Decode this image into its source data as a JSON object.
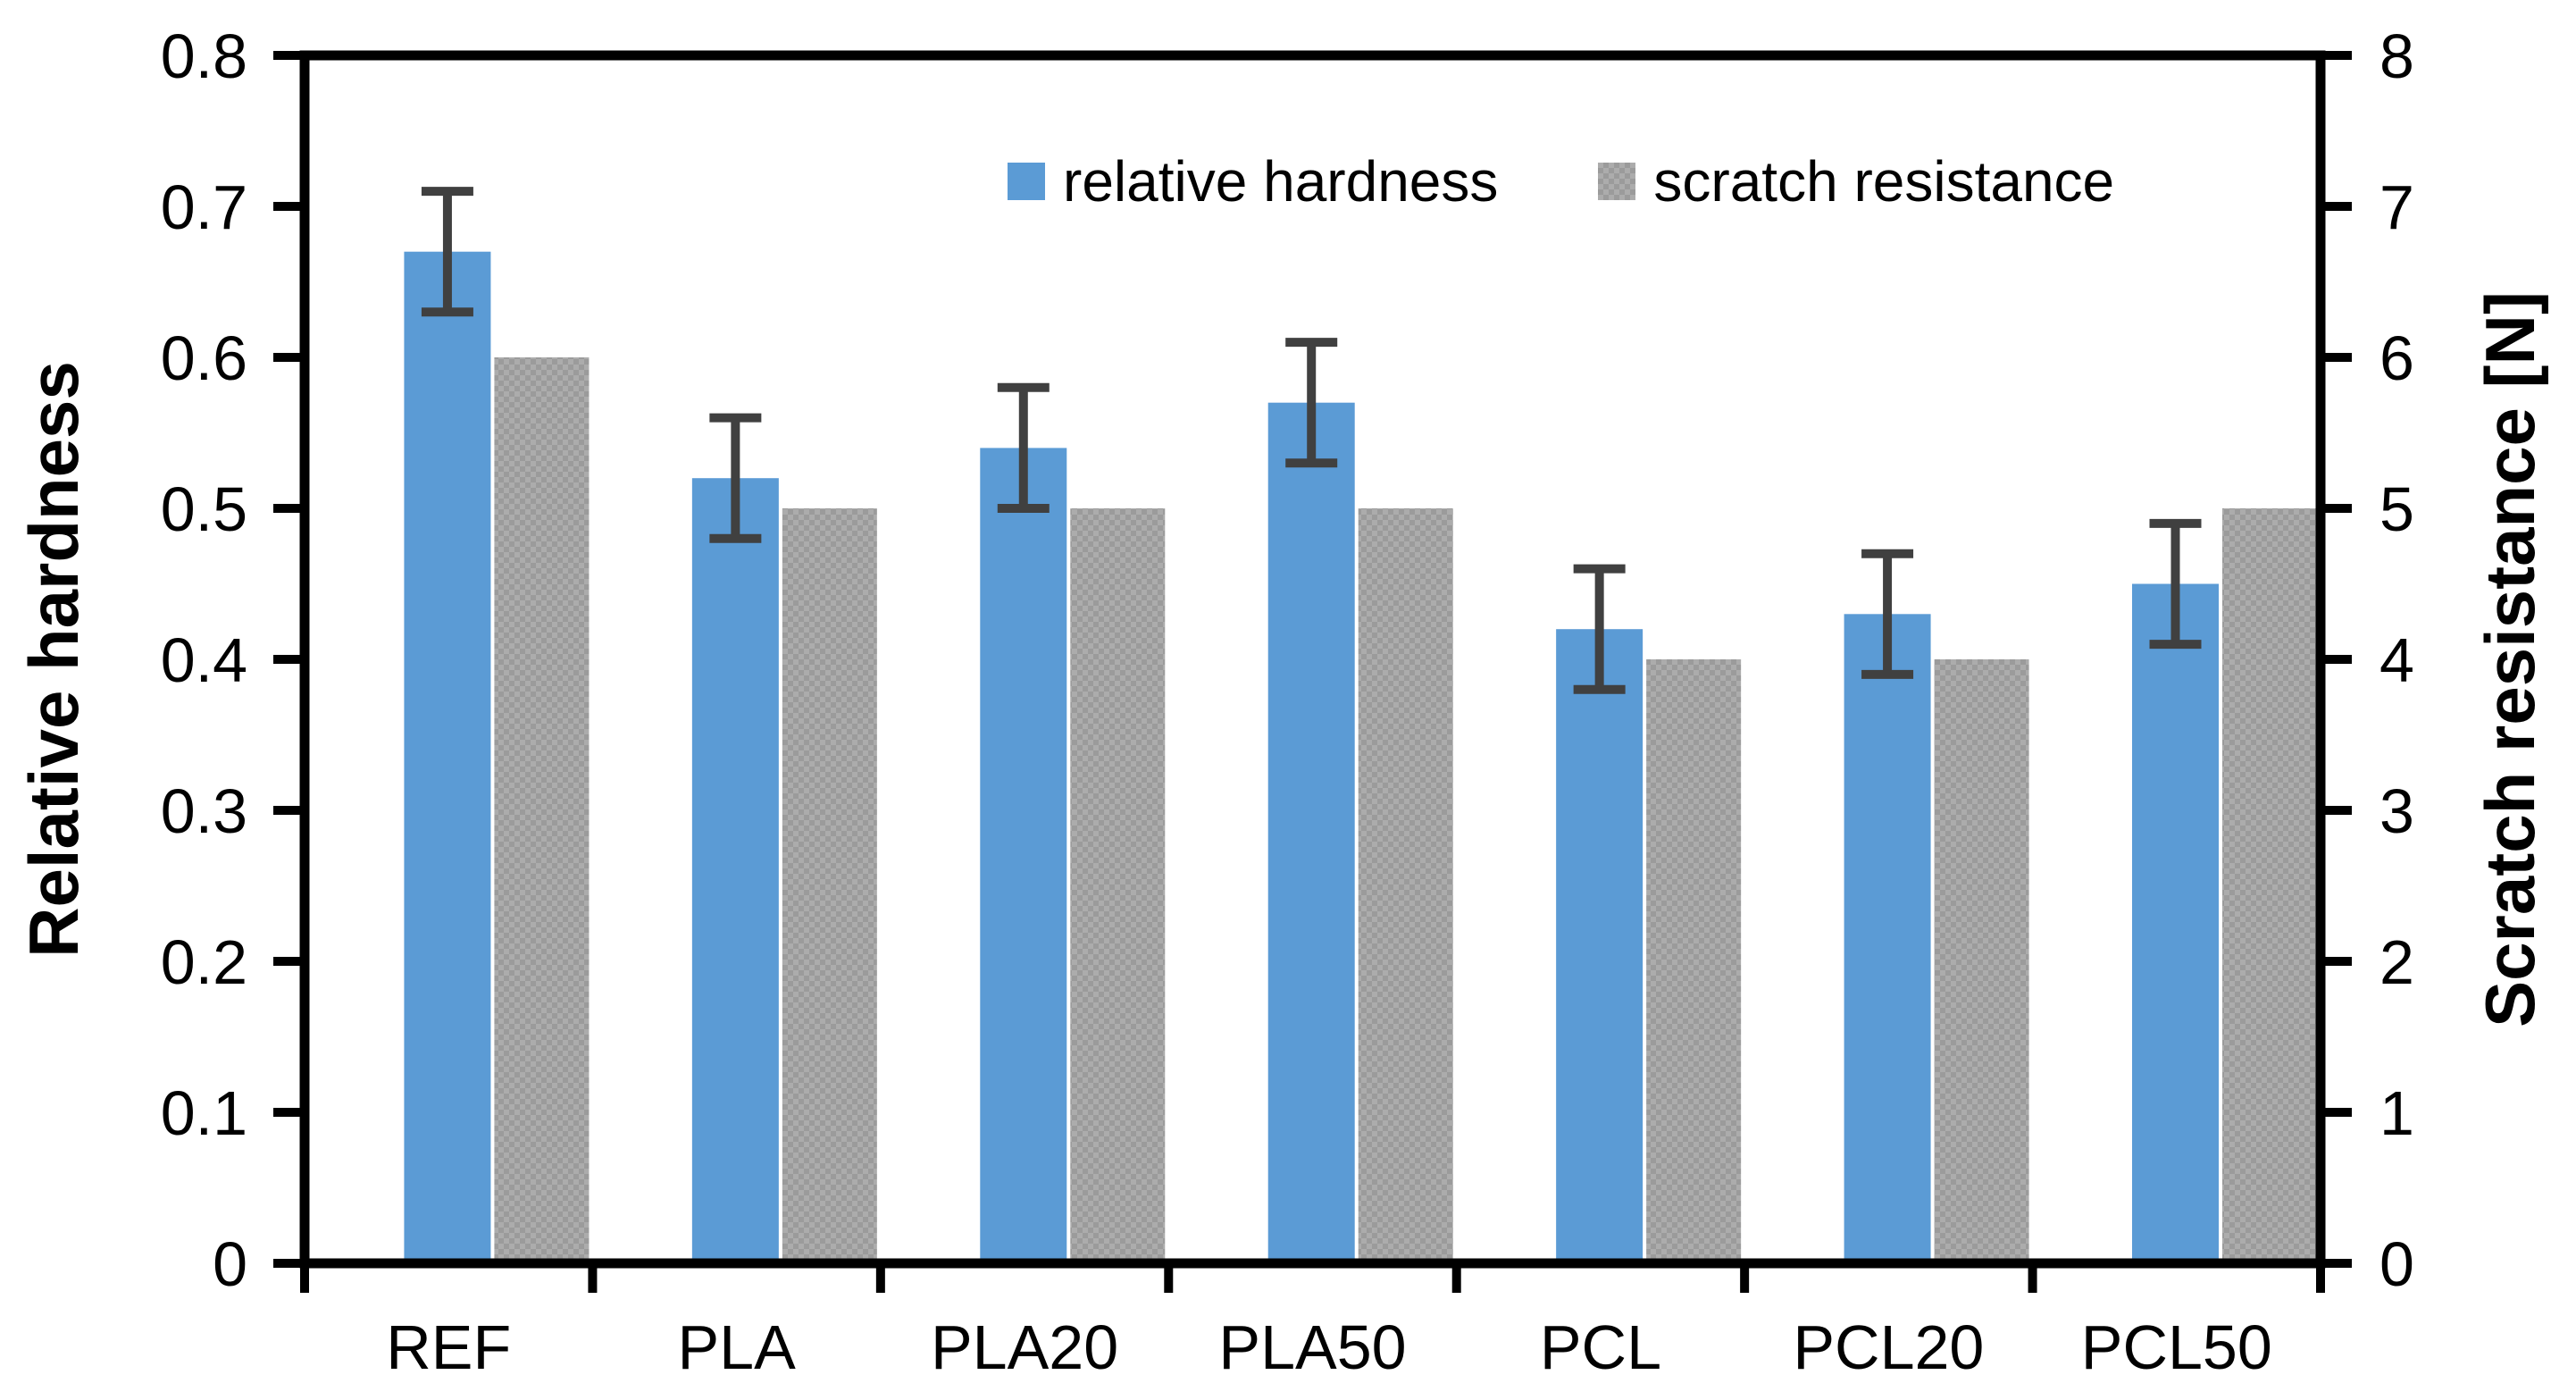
{
  "chart_data": {
    "type": "bar",
    "title": "",
    "categories": [
      "REF",
      "PLA",
      "PLA20",
      "PLA50",
      "PCL",
      "PCL20",
      "PCL50"
    ],
    "series": [
      {
        "name": "relative hardness",
        "axis": "left",
        "color": "#5B9BD5",
        "pattern": "solid",
        "values": [
          0.67,
          0.52,
          0.54,
          0.57,
          0.42,
          0.43,
          0.45
        ],
        "error_bars": [
          0.04,
          0.04,
          0.04,
          0.04,
          0.04,
          0.04,
          0.04
        ]
      },
      {
        "name": "scratch resistance",
        "axis": "right",
        "color": "#ACACAC",
        "pattern": "checker-dots",
        "pattern_dot_color": "#9B9B9B",
        "values": [
          6,
          5,
          5,
          5,
          4,
          4,
          5
        ]
      }
    ],
    "axes": {
      "left": {
        "label": "Relative hardness",
        "min": 0,
        "max": 0.8,
        "step": 0.1,
        "tick_labels": [
          "0",
          "0.1",
          "0.2",
          "0.3",
          "0.4",
          "0.5",
          "0.6",
          "0.7",
          "0.8"
        ]
      },
      "right": {
        "label": "Scratch resistance [N]",
        "min": 0,
        "max": 8,
        "step": 1,
        "tick_labels": [
          "0",
          "1",
          "2",
          "3",
          "4",
          "5",
          "6",
          "7",
          "8"
        ]
      },
      "x": {
        "label": "",
        "tick_labels": [
          "REF",
          "PLA",
          "PLA20",
          "PLA50",
          "PCL",
          "PCL20",
          "PCL50"
        ]
      }
    },
    "legend": {
      "position": "top-center",
      "entries": [
        "relative hardness",
        "scratch resistance"
      ]
    },
    "styles": {
      "error_bar_color": "#404040",
      "axis_color": "#000000",
      "text_color": "#000000",
      "grid": false
    }
  }
}
